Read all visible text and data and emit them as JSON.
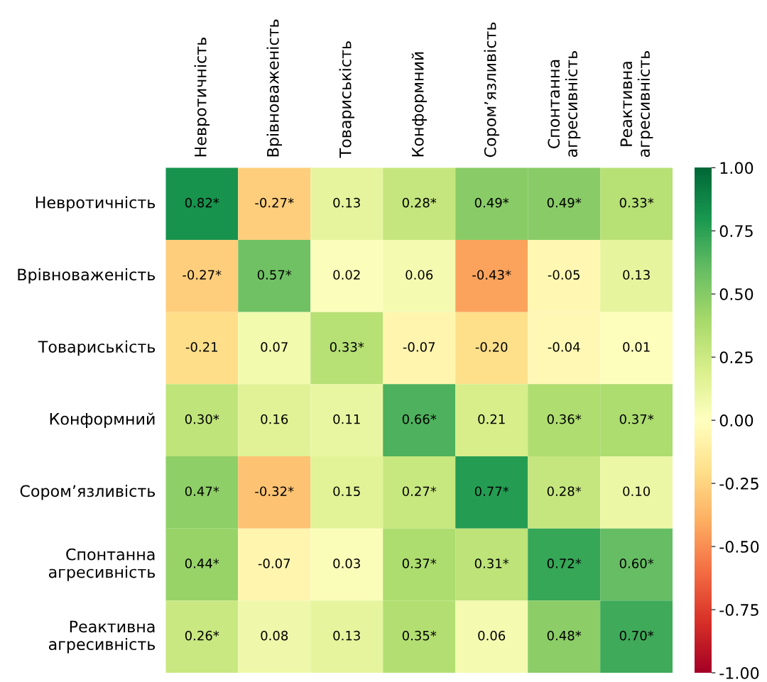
{
  "chart_data": {
    "type": "heatmap",
    "categories": [
      "Невротичність",
      "Врівноваженість",
      "Товариськість",
      "Конформний",
      "Сором’язливість",
      "Спонтанна\nагресивність",
      "Реактивна\nагресивність"
    ],
    "y_categories": [
      "Невротичність",
      "Врівноваженість",
      "Товариськість",
      "Конформний",
      "Сором’язливість",
      "Спонтанна\nагресивність",
      "Реактивна\nагресивність"
    ],
    "cells": [
      [
        0.82,
        -0.27,
        0.13,
        0.28,
        0.49,
        0.49,
        0.33
      ],
      [
        -0.27,
        0.57,
        0.02,
        0.06,
        -0.43,
        -0.05,
        0.13
      ],
      [
        -0.21,
        0.07,
        0.33,
        -0.07,
        -0.2,
        -0.04,
        0.01
      ],
      [
        0.3,
        0.16,
        0.11,
        0.66,
        0.21,
        0.36,
        0.37
      ],
      [
        0.47,
        -0.32,
        0.15,
        0.27,
        0.77,
        0.28,
        0.1
      ],
      [
        0.44,
        -0.07,
        0.03,
        0.37,
        0.31,
        0.72,
        0.6
      ],
      [
        0.26,
        0.08,
        0.13,
        0.35,
        0.06,
        0.48,
        0.7
      ]
    ],
    "cell_labels": [
      [
        "0.82*",
        "-0.27*",
        "0.13",
        "0.28*",
        "0.49*",
        "0.49*",
        "0.33*"
      ],
      [
        "-0.27*",
        "0.57*",
        "0.02",
        "0.06",
        "-0.43*",
        "-0.05",
        "0.13"
      ],
      [
        "-0.21",
        "0.07",
        "0.33*",
        "-0.07",
        "-0.20",
        "-0.04",
        "0.01"
      ],
      [
        "0.30*",
        "0.16",
        "0.11",
        "0.66*",
        "0.21",
        "0.36*",
        "0.37*"
      ],
      [
        "0.47*",
        "-0.32*",
        "0.15",
        "0.27*",
        "0.77*",
        "0.28*",
        "0.10"
      ],
      [
        "0.44*",
        "-0.07",
        "0.03",
        "0.37*",
        "0.31*",
        "0.72*",
        "0.60*"
      ],
      [
        "0.26*",
        "0.08",
        "0.13",
        "0.35*",
        "0.06",
        "0.48*",
        "0.70*"
      ]
    ],
    "clim": [
      -1,
      1
    ],
    "cticks": [
      {
        "value": 1,
        "label": "1.00"
      },
      {
        "value": 0.75,
        "label": "0.75"
      },
      {
        "value": 0.5,
        "label": "0.50"
      },
      {
        "value": 0.25,
        "label": "0.25"
      },
      {
        "value": 0,
        "label": "0.00"
      },
      {
        "value": -0.25,
        "label": "-0.25"
      },
      {
        "value": -0.5,
        "label": "-0.50"
      },
      {
        "value": -0.75,
        "label": "-0.75"
      },
      {
        "value": -1,
        "label": "-1.00"
      }
    ]
  }
}
